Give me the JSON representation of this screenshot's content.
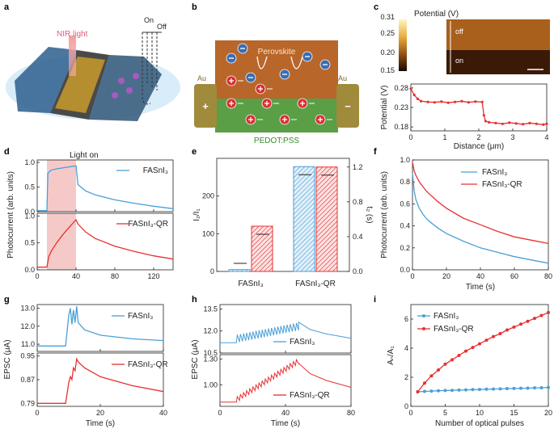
{
  "panel_labels": [
    "a",
    "b",
    "c",
    "d",
    "e",
    "f",
    "g",
    "h",
    "i"
  ],
  "colors": {
    "blue": "#4a9fd8",
    "red": "#e83030",
    "pink_fill": "#f6c9c9",
    "perovskite": "#b8662a",
    "pedot": "#5a9e46",
    "au": "#a08a3c",
    "ion": "#3d6db0"
  },
  "a": {
    "light_label": "NIR light",
    "on_label": "On",
    "off_label": "Off"
  },
  "b": {
    "top_layer": "Perovskite",
    "bottom_layer": "PEDOT:PSS",
    "left_electrode": "Au",
    "right_electrode": "Au",
    "left_sign": "+",
    "right_sign": "−"
  },
  "c": {
    "colorbar_title": "Potential (V)",
    "colorbar_ticks": [
      "0.31",
      "0.25",
      "0.20",
      "0.15"
    ],
    "map_off": "off",
    "map_on": "on"
  },
  "texts": {
    "light_on": "Light on",
    "fasni3": "FASnI₃",
    "fasni3_qr": "FASnI₃-QR",
    "e_left_axis": "I₂/I₁",
    "e_right_axis": "t₂ (s)",
    "g_legend_blue": "FASnI₃",
    "g_legend_red": "FASnI₃-QR"
  },
  "chart_data": [
    {
      "id": "c",
      "type": "line",
      "xlabel": "Distance (μm)",
      "ylabel": "Potential (V)",
      "xlim": [
        0,
        4
      ],
      "ylim": [
        0.17,
        0.29
      ],
      "xticks": [
        "0",
        "1",
        "2",
        "3",
        "4"
      ],
      "yticks": [
        "0.28",
        "0.23",
        "0.18"
      ],
      "series": [
        {
          "name": "profile",
          "x": [
            0,
            0.1,
            0.2,
            0.3,
            0.5,
            0.7,
            0.9,
            1.1,
            1.3,
            1.5,
            1.7,
            1.9,
            2.1,
            2.15,
            2.2,
            2.3,
            2.5,
            2.7,
            2.9,
            3.1,
            3.3,
            3.5,
            3.7,
            3.9,
            4.0
          ],
          "y": [
            0.278,
            0.262,
            0.252,
            0.246,
            0.244,
            0.243,
            0.245,
            0.242,
            0.244,
            0.246,
            0.243,
            0.245,
            0.244,
            0.21,
            0.195,
            0.192,
            0.19,
            0.188,
            0.191,
            0.189,
            0.187,
            0.19,
            0.188,
            0.186,
            0.188
          ]
        }
      ]
    },
    {
      "id": "d_top",
      "type": "line",
      "xlabel": "Time (s)",
      "ylabel": "Photocurrent (arb. units)",
      "xlim": [
        0,
        140
      ],
      "ylim": [
        0,
        1.05
      ],
      "xticks": [
        "0",
        "40",
        "80",
        "120"
      ],
      "yticks": [
        "0.0",
        "0.5",
        "1.0"
      ],
      "shaded": [
        10,
        40
      ],
      "series": [
        {
          "name": "FASnI₃",
          "x": [
            0,
            10,
            11,
            14,
            20,
            30,
            40,
            42,
            50,
            60,
            80,
            100,
            120,
            140
          ],
          "y": [
            0.02,
            0.02,
            0.78,
            0.84,
            0.87,
            0.9,
            0.93,
            0.55,
            0.42,
            0.34,
            0.24,
            0.17,
            0.11,
            0.06
          ]
        }
      ]
    },
    {
      "id": "d_bot",
      "type": "line",
      "xlim": [
        0,
        140
      ],
      "ylim": [
        0,
        1.05
      ],
      "xticks": [
        "0",
        "40",
        "80",
        "120"
      ],
      "yticks": [
        "0.0",
        "0.5",
        "1.0"
      ],
      "shaded": [
        10,
        40
      ],
      "series": [
        {
          "name": "FASnI₃-QR",
          "x": [
            0,
            10,
            12,
            15,
            20,
            25,
            30,
            35,
            40,
            42,
            50,
            60,
            80,
            100,
            120,
            140
          ],
          "y": [
            0.05,
            0.05,
            0.25,
            0.36,
            0.5,
            0.62,
            0.73,
            0.83,
            0.93,
            0.85,
            0.7,
            0.58,
            0.44,
            0.34,
            0.26,
            0.2
          ]
        }
      ]
    },
    {
      "id": "e",
      "type": "bar",
      "categories": [
        "FASnI₃",
        "FASnI₃-QR"
      ],
      "ylabel": "I₂/I₁",
      "y2label": "t₂ (s)",
      "ylim": [
        0,
        300
      ],
      "y2lim": [
        0,
        1.3
      ],
      "yticks": [
        "0",
        "100",
        "200"
      ],
      "y2ticks": [
        "0.0",
        "0.4",
        "0.8",
        "1.2"
      ],
      "series": [
        {
          "name": "I₂/I₁",
          "values": [
            5,
            278
          ]
        },
        {
          "name": "t₂",
          "values": [
            0.52,
            1.2
          ]
        }
      ]
    },
    {
      "id": "f",
      "type": "line",
      "xlabel": "Time (s)",
      "ylabel": "Photocurrent (arb. units)",
      "xlim": [
        0,
        80
      ],
      "ylim": [
        0,
        1.0
      ],
      "xticks": [
        "0",
        "20",
        "40",
        "60",
        "80"
      ],
      "yticks": [
        "0.0",
        "0.2",
        "0.4",
        "0.6",
        "0.8",
        "1.0"
      ],
      "series": [
        {
          "name": "FASnI₃",
          "x": [
            0,
            1,
            2,
            4,
            6,
            8,
            10,
            15,
            20,
            30,
            40,
            50,
            60,
            70,
            80
          ],
          "y": [
            0.88,
            0.72,
            0.64,
            0.56,
            0.51,
            0.47,
            0.44,
            0.38,
            0.33,
            0.26,
            0.2,
            0.16,
            0.12,
            0.09,
            0.06
          ]
        },
        {
          "name": "FASnI₃-QR",
          "x": [
            0,
            1,
            2,
            4,
            6,
            8,
            10,
            15,
            20,
            30,
            40,
            50,
            60,
            70,
            80
          ],
          "y": [
            0.98,
            0.9,
            0.86,
            0.8,
            0.76,
            0.72,
            0.69,
            0.62,
            0.56,
            0.47,
            0.41,
            0.35,
            0.3,
            0.27,
            0.24
          ]
        }
      ]
    },
    {
      "id": "g_top",
      "type": "line",
      "xlim": [
        0,
        40
      ],
      "ylim": [
        10.6,
        13.2
      ],
      "xticks": [
        "0",
        "20",
        "40"
      ],
      "yticks": [
        "11.0",
        "12.0",
        "13.0"
      ],
      "series": [
        {
          "name": "FASnI₃",
          "x": [
            0,
            9,
            10,
            10.5,
            11,
            11.5,
            12,
            12.5,
            13,
            15,
            20,
            30,
            40
          ],
          "y": [
            10.9,
            10.9,
            12.6,
            13.0,
            12.1,
            12.9,
            12.2,
            13.1,
            12.2,
            11.8,
            11.5,
            11.3,
            11.2
          ]
        }
      ]
    },
    {
      "id": "g_bot",
      "type": "line",
      "xlabel": "Time (s)",
      "xlim": [
        0,
        40
      ],
      "ylim": [
        0.78,
        0.96
      ],
      "xticks": [
        "0",
        "20",
        "40"
      ],
      "yticks": [
        "0.79",
        "0.87",
        "0.95"
      ],
      "series": [
        {
          "name": "FASnI₃-QR",
          "x": [
            0,
            9,
            10,
            10.5,
            11,
            11.5,
            12,
            12.5,
            13,
            15,
            20,
            30,
            40
          ],
          "y": [
            0.79,
            0.79,
            0.86,
            0.88,
            0.87,
            0.91,
            0.9,
            0.94,
            0.93,
            0.91,
            0.88,
            0.85,
            0.83
          ]
        }
      ]
    },
    {
      "id": "h_top",
      "type": "line",
      "xlim": [
        0,
        80
      ],
      "ylim": [
        10.5,
        13.8
      ],
      "xticks": [
        "0",
        "40",
        "80"
      ],
      "yticks": [
        "10.5",
        "12.0",
        "13.5"
      ],
      "pulses": 20,
      "pulse_start": 10,
      "pulse_end": 48,
      "series": [
        {
          "name": "FASnI₃",
          "x": [
            0,
            10,
            48,
            55,
            65,
            80
          ],
          "y": [
            11.2,
            11.2,
            12.6,
            12.1,
            11.8,
            11.5
          ]
        }
      ]
    },
    {
      "id": "h_bot",
      "type": "line",
      "xlabel": "Time (s)",
      "xlim": [
        0,
        80
      ],
      "ylim": [
        0.75,
        1.35
      ],
      "xticks": [
        "0",
        "40",
        "80"
      ],
      "yticks": [
        "1.00",
        "1.30"
      ],
      "pulses": 20,
      "pulse_start": 10,
      "pulse_end": 48,
      "series": [
        {
          "name": "FASnI₃-QR",
          "x": [
            0,
            10,
            48,
            55,
            65,
            80
          ],
          "y": [
            0.8,
            0.8,
            1.25,
            1.13,
            1.05,
            0.97
          ]
        }
      ]
    },
    {
      "id": "i",
      "type": "line",
      "xlabel": "Number of optical pulses",
      "ylabel": "Aₙ/A₁",
      "xlim": [
        0,
        20
      ],
      "ylim": [
        0,
        7
      ],
      "xticks": [
        "0",
        "5",
        "10",
        "15",
        "20"
      ],
      "yticks": [
        "0",
        "2",
        "4",
        "6"
      ],
      "series": [
        {
          "name": "FASnI₃",
          "x": [
            1,
            2,
            3,
            4,
            5,
            6,
            7,
            8,
            9,
            10,
            11,
            12,
            13,
            14,
            15,
            16,
            17,
            18,
            19,
            20
          ],
          "y": [
            1.0,
            1.03,
            1.05,
            1.07,
            1.09,
            1.1,
            1.12,
            1.13,
            1.15,
            1.16,
            1.18,
            1.19,
            1.2,
            1.22,
            1.23,
            1.24,
            1.25,
            1.27,
            1.28,
            1.3
          ]
        },
        {
          "name": "FASnI₃-QR",
          "x": [
            1,
            2,
            3,
            4,
            5,
            6,
            7,
            8,
            9,
            10,
            11,
            12,
            13,
            14,
            15,
            16,
            17,
            18,
            19,
            20
          ],
          "y": [
            1.0,
            1.6,
            2.1,
            2.5,
            2.9,
            3.2,
            3.5,
            3.8,
            4.05,
            4.3,
            4.55,
            4.8,
            5.0,
            5.25,
            5.45,
            5.65,
            5.85,
            6.05,
            6.25,
            6.45
          ]
        }
      ]
    }
  ]
}
